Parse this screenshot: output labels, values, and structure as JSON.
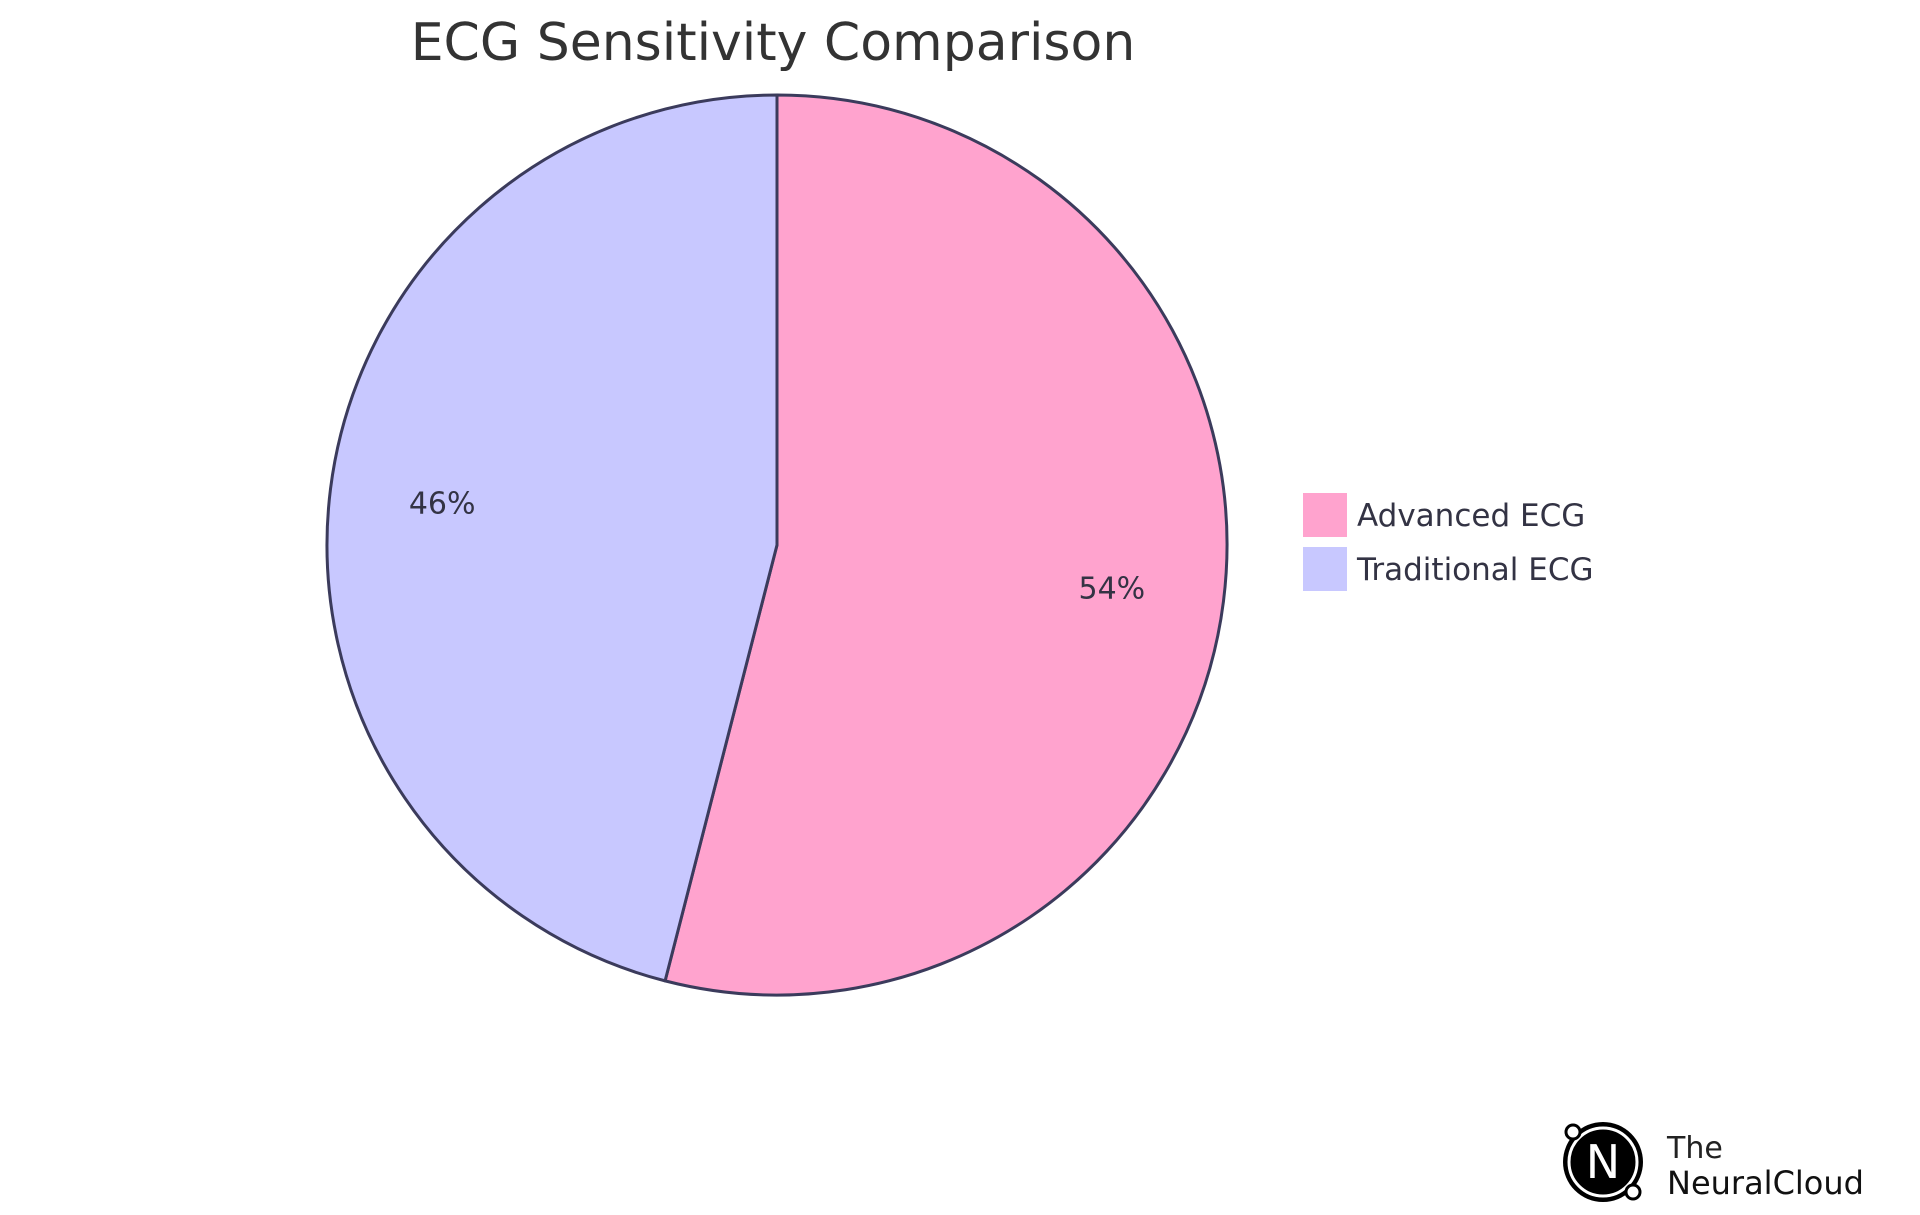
{
  "chart_data": {
    "type": "pie",
    "title": "ECG Sensitivity Comparison",
    "slices": [
      {
        "name": "Advanced ECG",
        "value": 54,
        "label": "54%",
        "color": "#FFA3CE"
      },
      {
        "name": "Traditional ECG",
        "value": 46,
        "label": "46%",
        "color": "#C8C8FF"
      }
    ],
    "start": "12 o'clock",
    "direction": "clockwise",
    "stroke_color": "#3B3B5C",
    "legend_position": "right"
  },
  "logo": {
    "line1": "The",
    "line2": "NeuralCloud",
    "mark": "N"
  }
}
